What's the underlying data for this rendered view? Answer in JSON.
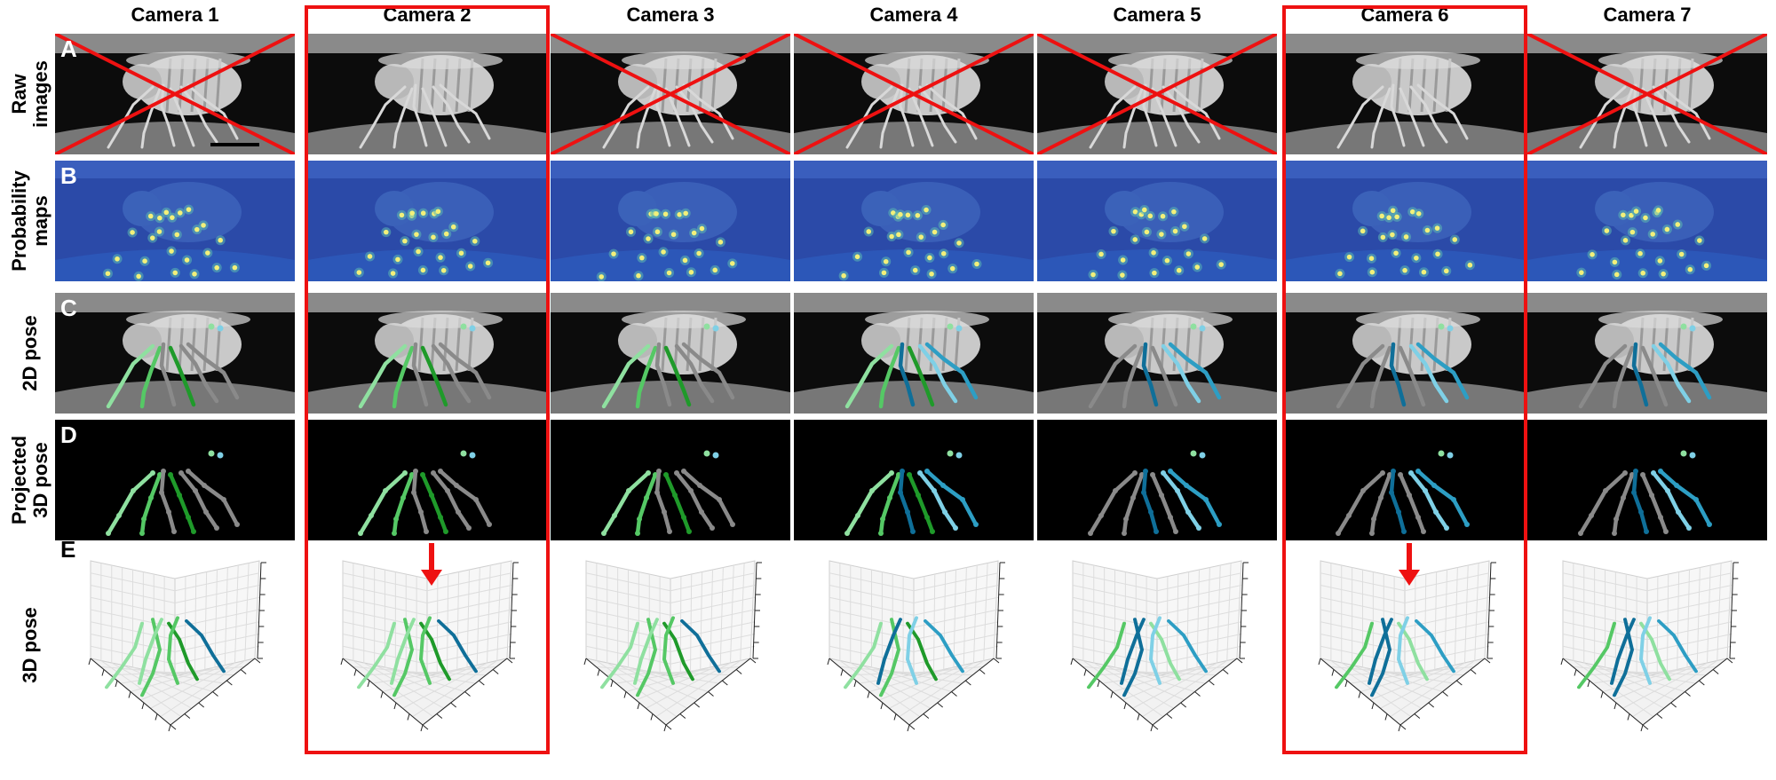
{
  "cameras": [
    "Camera 1",
    "Camera 2",
    "Camera 3",
    "Camera 4",
    "Camera 5",
    "Camera 6",
    "Camera 7"
  ],
  "rows": [
    {
      "letter": "A",
      "label": [
        "Raw",
        "images"
      ],
      "type": "raw"
    },
    {
      "letter": "B",
      "label": [
        "Probability",
        "maps"
      ],
      "type": "prob"
    },
    {
      "letter": "C",
      "label": [
        "2D pose"
      ],
      "type": "pose2d"
    },
    {
      "letter": "D",
      "label": [
        "Projected",
        "3D pose"
      ],
      "type": "proj"
    },
    {
      "letter": "E",
      "label": [
        "3D pose"
      ],
      "type": "pose3d"
    }
  ],
  "rejected_cameras": [
    1,
    3,
    4,
    5,
    7
  ],
  "highlighted_cameras": [
    2,
    6
  ],
  "colors": {
    "highlight": "#ee1111",
    "probability_bg": "#2b4aa8",
    "keypoint": "#f2f07a",
    "leg_left_light": "#8fe0a0",
    "leg_left_mid": "#55c865",
    "leg_left_dark": "#1f9a2a",
    "leg_right_light": "#7fd0e6",
    "leg_right_mid": "#2d9ec4",
    "leg_right_dark": "#0f6f99",
    "leg_grey": "#8a8a8a"
  }
}
